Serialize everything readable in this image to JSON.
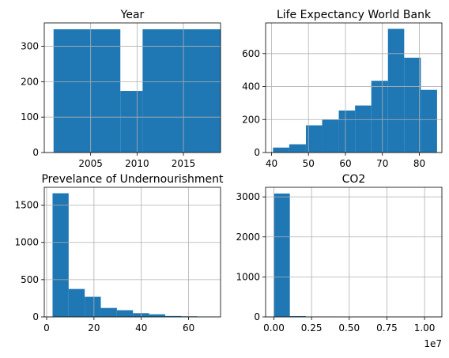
{
  "chart_data": [
    {
      "type": "bar",
      "title": "Year",
      "color": "#1f77b4",
      "grid": true,
      "xlim": [
        2000,
        2019
      ],
      "ylim": [
        0,
        366
      ],
      "xticks": [
        2005,
        2010,
        2015
      ],
      "yticks": [
        0,
        100,
        200,
        300
      ],
      "bins": [
        {
          "x0": 2001,
          "x1": 2008.2,
          "value": 348
        },
        {
          "x0": 2008.2,
          "x1": 2010.6,
          "value": 174
        },
        {
          "x0": 2010.6,
          "x1": 2019,
          "value": 348
        }
      ]
    },
    {
      "type": "bar",
      "title": "Life Expectancy World Bank",
      "color": "#1f77b4",
      "grid": true,
      "xlim": [
        38.4,
        86.1
      ],
      "ylim": [
        0,
        786
      ],
      "xticks": [
        40,
        50,
        60,
        70,
        80
      ],
      "yticks": [
        0,
        200,
        400,
        600
      ],
      "bins": [
        {
          "x0": 40.4,
          "x1": 44.8,
          "value": 30
        },
        {
          "x0": 44.8,
          "x1": 49.3,
          "value": 50
        },
        {
          "x0": 49.3,
          "x1": 53.7,
          "value": 165
        },
        {
          "x0": 53.7,
          "x1": 58.2,
          "value": 200
        },
        {
          "x0": 58.2,
          "x1": 62.6,
          "value": 255
        },
        {
          "x0": 62.6,
          "x1": 67.0,
          "value": 285
        },
        {
          "x0": 67.0,
          "x1": 71.5,
          "value": 435
        },
        {
          "x0": 71.5,
          "x1": 75.9,
          "value": 750
        },
        {
          "x0": 75.9,
          "x1": 80.4,
          "value": 575
        },
        {
          "x0": 80.4,
          "x1": 84.8,
          "value": 380
        }
      ]
    },
    {
      "type": "bar",
      "title": "Prevelance of Undernourishment",
      "color": "#1f77b4",
      "grid": true,
      "xlim": [
        -1.0,
        73.5
      ],
      "ylim": [
        0,
        1740
      ],
      "xticks": [
        0,
        20,
        40,
        60
      ],
      "yticks": [
        0,
        500,
        1000,
        1500
      ],
      "bins": [
        {
          "x0": 2.5,
          "x1": 9.3,
          "value": 1660
        },
        {
          "x0": 9.3,
          "x1": 16.1,
          "value": 375
        },
        {
          "x0": 16.1,
          "x1": 22.9,
          "value": 270
        },
        {
          "x0": 22.9,
          "x1": 29.7,
          "value": 120
        },
        {
          "x0": 29.7,
          "x1": 36.5,
          "value": 90
        },
        {
          "x0": 36.5,
          "x1": 43.3,
          "value": 50
        },
        {
          "x0": 43.3,
          "x1": 50.1,
          "value": 35
        },
        {
          "x0": 50.1,
          "x1": 56.9,
          "value": 12
        },
        {
          "x0": 56.9,
          "x1": 63.7,
          "value": 8
        },
        {
          "x0": 63.7,
          "x1": 70.5,
          "value": 5
        }
      ]
    },
    {
      "type": "bar",
      "title": "CO2",
      "color": "#1f77b4",
      "grid": true,
      "xlim": [
        -0.055,
        1.115
      ],
      "ylim": [
        0,
        3240
      ],
      "xticks": [
        0.0,
        0.25,
        0.5,
        0.75,
        1.0
      ],
      "xtick_labels": [
        "0.00",
        "0.25",
        "0.50",
        "0.75",
        "1.00"
      ],
      "x_offset_label": "1e7",
      "yticks": [
        0,
        1000,
        2000,
        3000
      ],
      "bins": [
        {
          "x0": 0.0,
          "x1": 0.106,
          "value": 3085
        },
        {
          "x0": 0.106,
          "x1": 0.212,
          "value": 20
        },
        {
          "x0": 0.212,
          "x1": 0.318,
          "value": 5
        },
        {
          "x0": 0.318,
          "x1": 0.424,
          "value": 2
        },
        {
          "x0": 0.424,
          "x1": 0.53,
          "value": 1
        },
        {
          "x0": 0.53,
          "x1": 0.636,
          "value": 1
        },
        {
          "x0": 0.636,
          "x1": 0.742,
          "value": 1
        },
        {
          "x0": 0.742,
          "x1": 0.848,
          "value": 1
        },
        {
          "x0": 0.848,
          "x1": 0.954,
          "value": 1
        },
        {
          "x0": 0.954,
          "x1": 1.06,
          "value": 1
        }
      ]
    }
  ]
}
